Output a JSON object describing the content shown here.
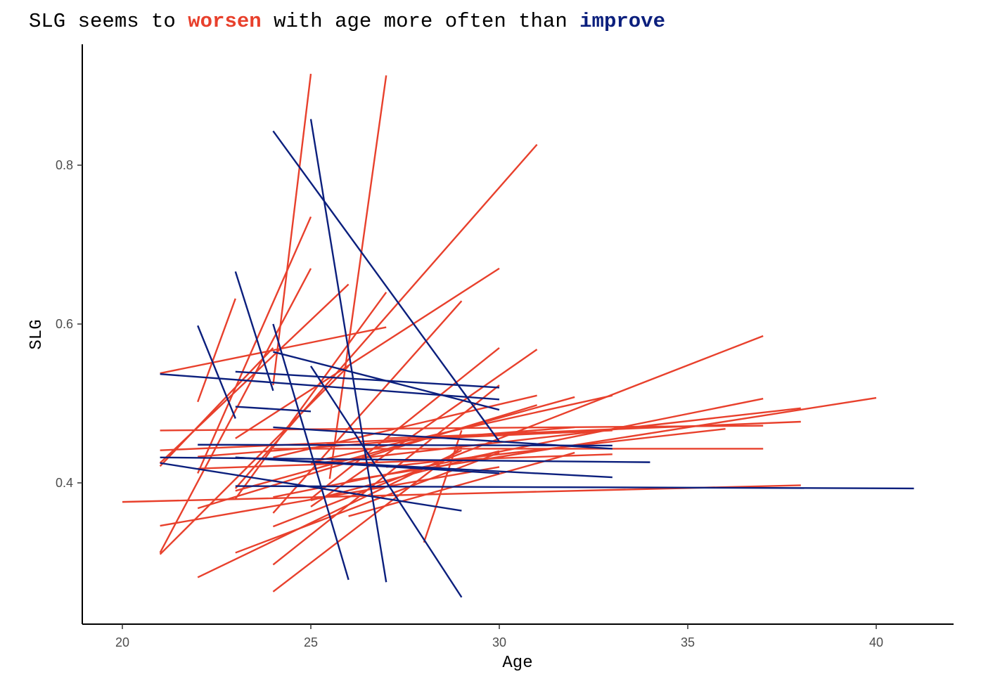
{
  "chart_data": {
    "type": "line",
    "title": {
      "t1": "SLG seems to ",
      "t2": "worsen",
      "t3": " with age more often than ",
      "t4": "improve"
    },
    "xlabel": "Age",
    "ylabel": "SLG",
    "xlim": [
      19,
      42
    ],
    "ylim": [
      0.265,
      0.92
    ],
    "x_ticks": [
      20,
      25,
      30,
      35,
      40
    ],
    "y_ticks": [
      0.4,
      0.6,
      0.8
    ],
    "x_tick_labels": [
      "20",
      "25",
      "30",
      "35",
      "40"
    ],
    "y_tick_labels": [
      "0.4",
      "0.6",
      "0.8"
    ],
    "grid": false,
    "legend": "none",
    "colors": {
      "worsen": "#e8402c",
      "improve": "#0b1f7d"
    },
    "series": [
      {
        "group": "worsen",
        "x": [
          25,
          24
        ],
        "y": [
          0.915,
          0.523
        ]
      },
      {
        "group": "worsen",
        "x": [
          27,
          25.5
        ],
        "y": [
          0.913,
          0.405
        ]
      },
      {
        "group": "worsen",
        "x": [
          31,
          23
        ],
        "y": [
          0.826,
          0.393
        ]
      },
      {
        "group": "worsen",
        "x": [
          25,
          22
        ],
        "y": [
          0.735,
          0.412
        ]
      },
      {
        "group": "worsen",
        "x": [
          30,
          23
        ],
        "y": [
          0.67,
          0.456
        ]
      },
      {
        "group": "worsen",
        "x": [
          25,
          21
        ],
        "y": [
          0.67,
          0.312
        ]
      },
      {
        "group": "worsen",
        "x": [
          26,
          21
        ],
        "y": [
          0.65,
          0.425
        ]
      },
      {
        "group": "worsen",
        "x": [
          27,
          23
        ],
        "y": [
          0.64,
          0.38
        ]
      },
      {
        "group": "worsen",
        "x": [
          23,
          22
        ],
        "y": [
          0.632,
          0.502
        ]
      },
      {
        "group": "worsen",
        "x": [
          29,
          24
        ],
        "y": [
          0.629,
          0.362
        ]
      },
      {
        "group": "worsen",
        "x": [
          27,
          21
        ],
        "y": [
          0.596,
          0.538
        ]
      },
      {
        "group": "worsen",
        "x": [
          30,
          25
        ],
        "y": [
          0.57,
          0.38
        ]
      },
      {
        "group": "worsen",
        "x": [
          31,
          25
        ],
        "y": [
          0.568,
          0.37
        ]
      },
      {
        "group": "worsen",
        "x": [
          26,
          21
        ],
        "y": [
          0.547,
          0.31
        ]
      },
      {
        "group": "worsen",
        "x": [
          37,
          24
        ],
        "y": [
          0.585,
          0.345
        ]
      },
      {
        "group": "worsen",
        "x": [
          24,
          21
        ],
        "y": [
          0.57,
          0.421
        ]
      },
      {
        "group": "worsen",
        "x": [
          31,
          24
        ],
        "y": [
          0.51,
          0.432
        ]
      },
      {
        "group": "worsen",
        "x": [
          32,
          23
        ],
        "y": [
          0.508,
          0.39
        ]
      },
      {
        "group": "worsen",
        "x": [
          33,
          25
        ],
        "y": [
          0.51,
          0.426
        ]
      },
      {
        "group": "worsen",
        "x": [
          37,
          24
        ],
        "y": [
          0.506,
          0.382
        ]
      },
      {
        "group": "worsen",
        "x": [
          40,
          26
        ],
        "y": [
          0.507,
          0.403
        ]
      },
      {
        "group": "worsen",
        "x": [
          38,
          25
        ],
        "y": [
          0.494,
          0.424
        ]
      },
      {
        "group": "worsen",
        "x": [
          38,
          27
        ],
        "y": [
          0.477,
          0.456
        ]
      },
      {
        "group": "worsen",
        "x": [
          37,
          21
        ],
        "y": [
          0.472,
          0.466
        ]
      },
      {
        "group": "worsen",
        "x": [
          36,
          27
        ],
        "y": [
          0.468,
          0.42
        ]
      },
      {
        "group": "worsen",
        "x": [
          33,
          21
        ],
        "y": [
          0.466,
          0.441
        ]
      },
      {
        "group": "worsen",
        "x": [
          37,
          24
        ],
        "y": [
          0.443,
          0.443
        ]
      },
      {
        "group": "worsen",
        "x": [
          33,
          22
        ],
        "y": [
          0.436,
          0.418
        ]
      },
      {
        "group": "worsen",
        "x": [
          32,
          22
        ],
        "y": [
          0.47,
          0.433
        ]
      },
      {
        "group": "worsen",
        "x": [
          38,
          20
        ],
        "y": [
          0.397,
          0.376
        ]
      },
      {
        "group": "worsen",
        "x": [
          30,
          21
        ],
        "y": [
          0.42,
          0.346
        ]
      },
      {
        "group": "worsen",
        "x": [
          30,
          23
        ],
        "y": [
          0.438,
          0.312
        ]
      },
      {
        "group": "worsen",
        "x": [
          29,
          22
        ],
        "y": [
          0.441,
          0.281
        ]
      },
      {
        "group": "worsen",
        "x": [
          29,
          24
        ],
        "y": [
          0.445,
          0.263
        ]
      },
      {
        "group": "worsen",
        "x": [
          30,
          24
        ],
        "y": [
          0.523,
          0.297
        ]
      },
      {
        "group": "worsen",
        "x": [
          29,
          28
        ],
        "y": [
          0.466,
          0.325
        ]
      },
      {
        "group": "worsen",
        "x": [
          32,
          26
        ],
        "y": [
          0.438,
          0.358
        ]
      },
      {
        "group": "worsen",
        "x": [
          31,
          22
        ],
        "y": [
          0.498,
          0.368
        ]
      },
      {
        "group": "worsen",
        "x": [
          30,
          25
        ],
        "y": [
          0.44,
          0.378
        ]
      },
      {
        "group": "improve",
        "x": [
          24,
          30
        ],
        "y": [
          0.843,
          0.452
        ]
      },
      {
        "group": "improve",
        "x": [
          25,
          27
        ],
        "y": [
          0.858,
          0.275
        ]
      },
      {
        "group": "improve",
        "x": [
          23,
          24
        ],
        "y": [
          0.666,
          0.516
        ]
      },
      {
        "group": "improve",
        "x": [
          24,
          26
        ],
        "y": [
          0.6,
          0.278
        ]
      },
      {
        "group": "improve",
        "x": [
          22,
          23
        ],
        "y": [
          0.598,
          0.481
        ]
      },
      {
        "group": "improve",
        "x": [
          25,
          29
        ],
        "y": [
          0.547,
          0.256
        ]
      },
      {
        "group": "improve",
        "x": [
          21,
          30
        ],
        "y": [
          0.537,
          0.505
        ]
      },
      {
        "group": "improve",
        "x": [
          23,
          30
        ],
        "y": [
          0.54,
          0.52
        ]
      },
      {
        "group": "improve",
        "x": [
          24,
          30
        ],
        "y": [
          0.565,
          0.492
        ]
      },
      {
        "group": "improve",
        "x": [
          23,
          25
        ],
        "y": [
          0.496,
          0.49
        ]
      },
      {
        "group": "improve",
        "x": [
          24,
          33
        ],
        "y": [
          0.47,
          0.443
        ]
      },
      {
        "group": "improve",
        "x": [
          22,
          33
        ],
        "y": [
          0.448,
          0.447
        ]
      },
      {
        "group": "improve",
        "x": [
          21,
          34
        ],
        "y": [
          0.432,
          0.426
        ]
      },
      {
        "group": "improve",
        "x": [
          23,
          30
        ],
        "y": [
          0.432,
          0.412
        ]
      },
      {
        "group": "improve",
        "x": [
          21,
          29
        ],
        "y": [
          0.425,
          0.365
        ]
      },
      {
        "group": "improve",
        "x": [
          23,
          33
        ],
        "y": [
          0.432,
          0.407
        ]
      },
      {
        "group": "improve",
        "x": [
          23,
          41
        ],
        "y": [
          0.396,
          0.393
        ]
      }
    ]
  }
}
